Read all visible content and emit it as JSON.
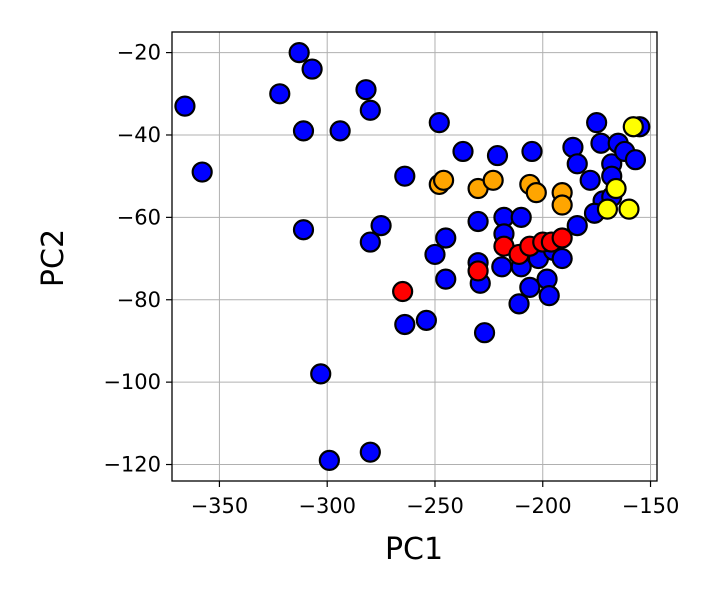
{
  "chart_data": {
    "type": "scatter",
    "xlabel": "PC1",
    "ylabel": "PC2",
    "xlim": [
      -372,
      -147
    ],
    "ylim": [
      -124,
      -15
    ],
    "xticks": [
      -350,
      -300,
      -250,
      -200,
      -150
    ],
    "yticks": [
      -20,
      -40,
      -60,
      -80,
      -100,
      -120
    ],
    "xtick_labels": [
      "−350",
      "−300",
      "−250",
      "−200",
      "−150"
    ],
    "ytick_labels": [
      "−20",
      "−40",
      "−60",
      "−80",
      "−100",
      "−120"
    ],
    "grid": true,
    "series": [
      {
        "color": "#0000ff",
        "points": [
          [
            -366,
            -33
          ],
          [
            -358,
            -49
          ],
          [
            -313,
            -20
          ],
          [
            -307,
            -24
          ],
          [
            -322,
            -30
          ],
          [
            -311,
            -39
          ],
          [
            -294,
            -39
          ],
          [
            -282,
            -29
          ],
          [
            -280,
            -34
          ],
          [
            -311,
            -63
          ],
          [
            -275,
            -62
          ],
          [
            -280,
            -66
          ],
          [
            -264,
            -50
          ],
          [
            -264,
            -86
          ],
          [
            -254,
            -85
          ],
          [
            -303,
            -98
          ],
          [
            -299,
            -119
          ],
          [
            -280,
            -117
          ],
          [
            -248,
            -37
          ],
          [
            -237,
            -44
          ],
          [
            -221,
            -45
          ],
          [
            -205,
            -44
          ],
          [
            -250,
            -69
          ],
          [
            -245,
            -65
          ],
          [
            -245,
            -75
          ],
          [
            -230,
            -61
          ],
          [
            -230,
            -71
          ],
          [
            -229,
            -76
          ],
          [
            -227,
            -88
          ],
          [
            -218,
            -60
          ],
          [
            -218,
            -64
          ],
          [
            -219,
            -72
          ],
          [
            -210,
            -60
          ],
          [
            -210,
            -72
          ],
          [
            -211,
            -81
          ],
          [
            -206,
            -77
          ],
          [
            -202,
            -70
          ],
          [
            -198,
            -75
          ],
          [
            -197,
            -79
          ],
          [
            -195,
            -68
          ],
          [
            -191,
            -70
          ],
          [
            -184,
            -62
          ],
          [
            -186,
            -43
          ],
          [
            -184,
            -47
          ],
          [
            -178,
            -51
          ],
          [
            -175,
            -37
          ],
          [
            -173,
            -42
          ],
          [
            -172,
            -56
          ],
          [
            -176,
            -59
          ],
          [
            -168,
            -55
          ],
          [
            -168,
            -47
          ],
          [
            -165,
            -42
          ],
          [
            -162,
            -44
          ],
          [
            -155,
            -38
          ],
          [
            -157,
            -46
          ],
          [
            -168,
            -50
          ]
        ]
      },
      {
        "color": "#ffa500",
        "points": [
          [
            -248,
            -52
          ],
          [
            -246,
            -51
          ],
          [
            -230,
            -53
          ],
          [
            -223,
            -51
          ],
          [
            -206,
            -52
          ],
          [
            -203,
            -54
          ],
          [
            -191,
            -54
          ],
          [
            -191,
            -57
          ]
        ]
      },
      {
        "color": "#ff0000",
        "points": [
          [
            -265,
            -78
          ],
          [
            -230,
            -73
          ],
          [
            -218,
            -67
          ],
          [
            -211,
            -69
          ],
          [
            -206,
            -67
          ],
          [
            -200,
            -66
          ],
          [
            -196,
            -66
          ],
          [
            -191,
            -65
          ]
        ]
      },
      {
        "color": "#ffff00",
        "points": [
          [
            -158,
            -38
          ],
          [
            -166,
            -53
          ],
          [
            -170,
            -58
          ],
          [
            -160,
            -58
          ]
        ]
      }
    ]
  }
}
